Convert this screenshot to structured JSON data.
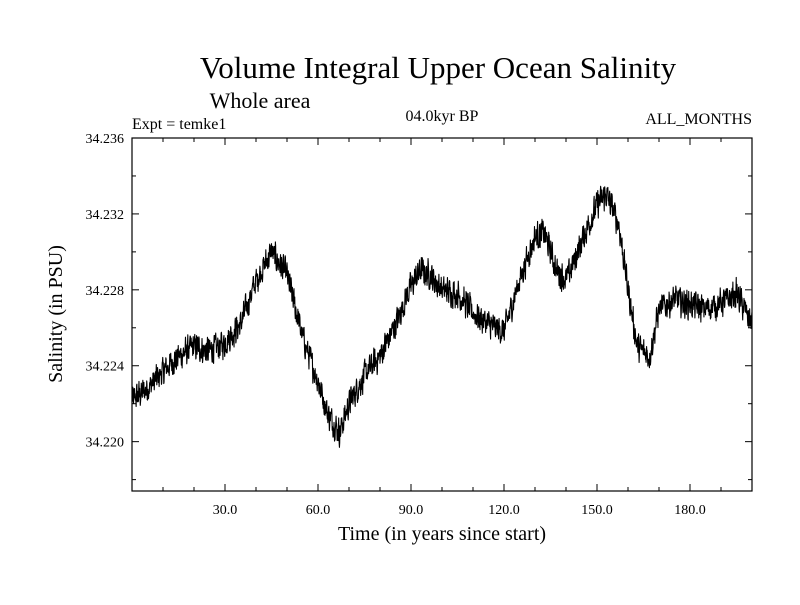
{
  "chart_data": {
    "type": "line",
    "title": "Volume Integral Upper Ocean Salinity",
    "subtitle": "Whole area",
    "experiment_label": "Expt = temke1",
    "period_label": "04.0kyr BP",
    "months_label": "ALL_MONTHS",
    "xlabel": "Time (in years since start)",
    "ylabel": "Salinity (in PSU)",
    "xlim": [
      0,
      200
    ],
    "ylim": [
      34.2174,
      34.236
    ],
    "x_ticks": [
      {
        "value": 30,
        "label": "30.0"
      },
      {
        "value": 60,
        "label": "60.0"
      },
      {
        "value": 90,
        "label": "90.0"
      },
      {
        "value": 120,
        "label": "120.0"
      },
      {
        "value": 150,
        "label": "150.0"
      },
      {
        "value": 180,
        "label": "180.0"
      }
    ],
    "y_ticks": [
      {
        "value": 34.22,
        "label": "34.220"
      },
      {
        "value": 34.224,
        "label": "34.224"
      },
      {
        "value": 34.228,
        "label": "34.228"
      },
      {
        "value": 34.232,
        "label": "34.232"
      },
      {
        "value": 34.236,
        "label": "34.236"
      }
    ],
    "series": [
      {
        "name": "Salinity",
        "color": "#000000",
        "sampling": "monthly",
        "trend_x": [
          0,
          5,
          10,
          15,
          20,
          25,
          30,
          35,
          40,
          45,
          50,
          55,
          60,
          63,
          67,
          70,
          75,
          80,
          85,
          90,
          93,
          96,
          100,
          105,
          110,
          115,
          120,
          125,
          130,
          133,
          137,
          140,
          145,
          150,
          153,
          157,
          160,
          163,
          167,
          170,
          175,
          180,
          185,
          190,
          195,
          200
        ],
        "trend_y": [
          34.2222,
          34.2228,
          34.2237,
          34.2245,
          34.225,
          34.2248,
          34.2252,
          34.2262,
          34.2285,
          34.23,
          34.2288,
          34.2255,
          34.2232,
          34.2215,
          34.2205,
          34.222,
          34.2235,
          34.2245,
          34.2262,
          34.2282,
          34.229,
          34.2288,
          34.228,
          34.2278,
          34.2268,
          34.2262,
          34.2258,
          34.2285,
          34.2308,
          34.231,
          34.229,
          34.2285,
          34.2305,
          34.2325,
          34.233,
          34.2315,
          34.228,
          34.225,
          34.2245,
          34.227,
          34.2275,
          34.2272,
          34.227,
          34.2273,
          34.2278,
          34.2262
        ],
        "monthly_amplitude_psu": 0.001
      }
    ]
  }
}
